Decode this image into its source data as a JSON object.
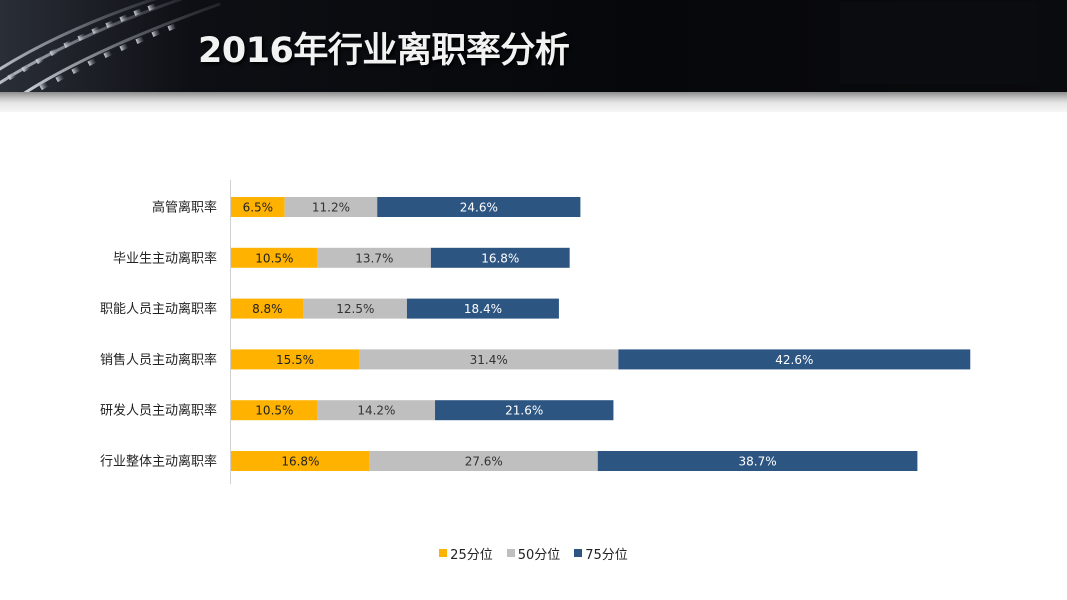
{
  "slide": {
    "title": "2016年行业离职率分析"
  },
  "colors": {
    "p25": "#FFB300",
    "p50": "#BFBFBF",
    "p75": "#2C5582"
  },
  "chart_data": {
    "type": "bar",
    "orientation": "horizontal",
    "stacked": true,
    "title": "",
    "xlabel": "",
    "ylabel": "",
    "categories": [
      "高管离职率",
      "毕业生主动离职率",
      "职能人员主动离职率",
      "销售人员主动离职率",
      "研发人员主动离职率",
      "行业整体主动离职率"
    ],
    "series": [
      {
        "name": "25分位",
        "values": [
          6.5,
          10.5,
          8.8,
          15.5,
          10.5,
          16.8
        ]
      },
      {
        "name": "50分位",
        "values": [
          11.2,
          13.7,
          12.5,
          31.4,
          14.2,
          27.6
        ]
      },
      {
        "name": "75分位",
        "values": [
          24.6,
          16.8,
          18.4,
          42.6,
          21.6,
          38.7
        ]
      }
    ],
    "data_labels": [
      [
        "6.5%",
        "10.5%",
        "8.8%",
        "15.5%",
        "10.5%",
        "16.8%"
      ],
      [
        "11.2%",
        "13.7%",
        "12.5%",
        "31.4%",
        "14.2%",
        "27.6%"
      ],
      [
        "24.6%",
        "16.8%",
        "18.4%",
        "42.6%",
        "21.6%",
        "38.7%"
      ]
    ],
    "legend": "bottom",
    "grid": false
  }
}
